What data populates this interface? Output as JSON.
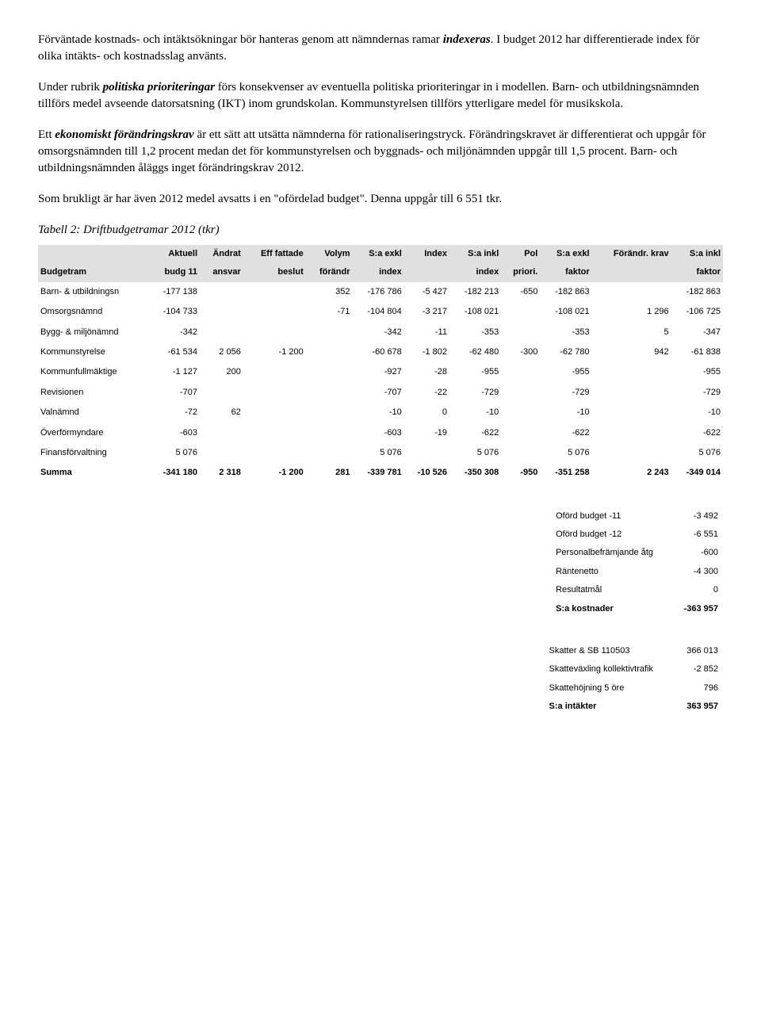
{
  "paragraphs": {
    "p1a": "Förväntade kostnads- och intäktsökningar bör hanteras genom att nämndernas ramar ",
    "p1b": "indexeras",
    "p1c": ". I budget 2012 har differentierade index för olika intäkts- och kostnadsslag använts.",
    "p2a": "Under rubrik ",
    "p2b": "politiska prioriteringar",
    "p2c": " förs konsekvenser av eventuella politiska prioriteringar in i modellen. Barn- och utbildningsnämnden tillförs medel avseende datorsatsning (IKT) inom grundskolan. Kommunstyrelsen tillförs ytterligare medel för musikskola.",
    "p3a": "Ett ",
    "p3b": "ekonomiskt förändringskrav",
    "p3c": " är ett sätt att utsätta nämnderna för rationaliseringstryck. Förändringskravet är differentierat och uppgår för omsorgsnämnden till 1,2 procent medan det för kommunstyrelsen och byggnads- och miljönämnden uppgår till 1,5 procent. Barn- och utbildningsnämnden åläggs inget förändringskrav 2012.",
    "p4": "Som brukligt är har även 2012 medel avsatts i en \"ofördelad budget\". Denna uppgår till 6 551 tkr.",
    "tableCaption": "Tabell 2: Driftbudgetramar 2012 (tkr)"
  },
  "mainTable": {
    "header1": [
      "",
      "Aktuell",
      "Ändrat",
      "Eff fattade",
      "Volym",
      "S:a exkl",
      "Index",
      "S:a inkl",
      "Pol",
      "S:a exkl",
      "Förändr. krav",
      "S:a inkl"
    ],
    "header2": [
      "Budgetram",
      "budg 11",
      "ansvar",
      "beslut",
      "förändr",
      "index",
      "",
      "index",
      "priori.",
      "faktor",
      "",
      "faktor"
    ],
    "rows": [
      [
        "Barn- & utbildningsn",
        "-177 138",
        "",
        "",
        "352",
        "-176 786",
        "-5 427",
        "-182 213",
        "-650",
        "-182 863",
        "",
        "-182 863"
      ],
      [
        "Omsorgsnämnd",
        "-104 733",
        "",
        "",
        "-71",
        "-104 804",
        "-3 217",
        "-108 021",
        "",
        "-108 021",
        "1 296",
        "-106 725"
      ],
      [
        "Bygg- & miljönämnd",
        "-342",
        "",
        "",
        "",
        "-342",
        "-11",
        "-353",
        "",
        "-353",
        "5",
        "-347"
      ],
      [
        "Kommunstyrelse",
        "-61 534",
        "2 056",
        "-1 200",
        "",
        "-60 678",
        "-1 802",
        "-62 480",
        "-300",
        "-62 780",
        "942",
        "-61 838"
      ],
      [
        "Kommunfullmäktige",
        "-1 127",
        "200",
        "",
        "",
        "-927",
        "-28",
        "-955",
        "",
        "-955",
        "",
        "-955"
      ],
      [
        "Revisionen",
        "-707",
        "",
        "",
        "",
        "-707",
        "-22",
        "-729",
        "",
        "-729",
        "",
        "-729"
      ],
      [
        "Valnämnd",
        "-72",
        "62",
        "",
        "",
        "-10",
        "0",
        "-10",
        "",
        "-10",
        "",
        "-10"
      ],
      [
        "Överförmyndare",
        "-603",
        "",
        "",
        "",
        "-603",
        "-19",
        "-622",
        "",
        "-622",
        "",
        "-622"
      ],
      [
        "Finansförvaltning",
        "5 076",
        "",
        "",
        "",
        "5 076",
        "",
        "5 076",
        "",
        "5 076",
        "",
        "5 076"
      ]
    ],
    "sumRow": [
      "Summa",
      "-341 180",
      "2 318",
      "-1 200",
      "281",
      "-339 781",
      "-10 526",
      "-350 308",
      "-950",
      "-351 258",
      "2 243",
      "-349 014"
    ]
  },
  "summary1": [
    [
      "Oförd budget -11",
      "-3 492"
    ],
    [
      "Oförd budget -12",
      "-6 551"
    ],
    [
      "Personalbefrämjande åtg",
      "-600"
    ],
    [
      "Räntenetto",
      "-4 300"
    ],
    [
      "Resultatmål",
      "0"
    ],
    [
      "S:a kostnader",
      "-363 957"
    ]
  ],
  "summary2": [
    [
      "Skatter & SB 110503",
      "366 013"
    ],
    [
      "Skatteväxling kollektivtrafik",
      "-2 852"
    ],
    [
      "Skattehöjning 5 öre",
      "796"
    ],
    [
      "S:a intäkter",
      "363 957"
    ]
  ],
  "boldSummaryRows": [
    "S:a kostnader",
    "S:a intäkter"
  ]
}
